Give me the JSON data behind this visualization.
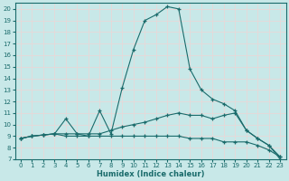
{
  "xlabel": "Humidex (Indice chaleur)",
  "bg_color": "#c8e8e8",
  "grid_color": "#e8d8d8",
  "line_color": "#1a6b6b",
  "marker": "+",
  "xlim": [
    -0.5,
    23.5
  ],
  "ylim": [
    7,
    20.5
  ],
  "yticks": [
    7,
    8,
    9,
    10,
    11,
    12,
    13,
    14,
    15,
    16,
    17,
    18,
    19,
    20
  ],
  "xticks": [
    0,
    1,
    2,
    3,
    4,
    5,
    6,
    7,
    8,
    9,
    10,
    11,
    12,
    13,
    14,
    15,
    16,
    17,
    18,
    19,
    20,
    21,
    22,
    23
  ],
  "series": [
    {
      "x": [
        0,
        1,
        2,
        3,
        4,
        5,
        6,
        7,
        8,
        9,
        10,
        11,
        12,
        13,
        14,
        15,
        16,
        17,
        18,
        19,
        20,
        21,
        22,
        23
      ],
      "y": [
        8.8,
        9.0,
        9.1,
        9.2,
        10.5,
        9.2,
        9.0,
        11.2,
        9.2,
        13.2,
        16.5,
        19.0,
        19.5,
        20.2,
        20.0,
        14.8,
        13.0,
        12.2,
        11.8,
        11.2,
        9.5,
        8.8,
        8.2,
        7.0
      ]
    },
    {
      "x": [
        0,
        1,
        2,
        3,
        4,
        5,
        6,
        7,
        8,
        9,
        10,
        11,
        12,
        13,
        14,
        15,
        16,
        17,
        18,
        19,
        20,
        21,
        22,
        23
      ],
      "y": [
        8.8,
        9.0,
        9.1,
        9.2,
        9.2,
        9.2,
        9.2,
        9.2,
        9.5,
        9.8,
        10.0,
        10.2,
        10.5,
        10.8,
        11.0,
        10.8,
        10.8,
        10.5,
        10.8,
        11.0,
        9.5,
        8.8,
        8.2,
        7.2
      ]
    },
    {
      "x": [
        0,
        1,
        2,
        3,
        4,
        5,
        6,
        7,
        8,
        9,
        10,
        11,
        12,
        13,
        14,
        15,
        16,
        17,
        18,
        19,
        20,
        21,
        22,
        23
      ],
      "y": [
        8.8,
        9.0,
        9.1,
        9.2,
        9.0,
        9.0,
        9.0,
        9.0,
        9.0,
        9.0,
        9.0,
        9.0,
        9.0,
        9.0,
        9.0,
        8.8,
        8.8,
        8.8,
        8.5,
        8.5,
        8.5,
        8.2,
        7.8,
        7.2
      ]
    }
  ]
}
